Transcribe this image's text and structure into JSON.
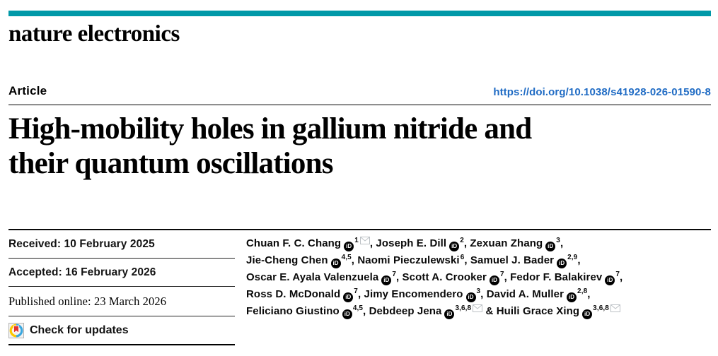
{
  "masthead": {
    "journal": "nature electronics",
    "accent_color": "#0199a8"
  },
  "article_bar": {
    "label": "Article",
    "doi": "https://doi.org/10.1038/s41928-026-01590-8",
    "doi_color": "#1f6bc4"
  },
  "title": {
    "full": "High-mobility holes in gallium nitride and their quantum oscillations",
    "lines": [
      "High-mobility holes in gallium nitride and",
      "their quantum oscillations"
    ]
  },
  "dates": {
    "received": "Received: 10 February 2025",
    "accepted": "Accepted: 16 February 2026",
    "published": "Published online: 23 March 2026"
  },
  "check_for_updates": {
    "label": "Check for updates",
    "icon": "crossmark-icon"
  },
  "icons": {
    "orcid": "orcid-icon",
    "email": "email-icon"
  },
  "authors": {
    "orcid_glyph": "iD",
    "lines": [
      [
        {
          "name": "Chuan F. C. Chang",
          "orcid": true,
          "sup": "1",
          "mail": true,
          "after": ", "
        },
        {
          "name": "Joseph E. Dill",
          "orcid": true,
          "sup": "2",
          "mail": false,
          "after": ", "
        },
        {
          "name": "Zexuan Zhang",
          "orcid": true,
          "sup": "3",
          "mail": false,
          "after": ","
        }
      ],
      [
        {
          "name": "Jie-Cheng Chen",
          "orcid": true,
          "sup": "4,5",
          "mail": false,
          "after": ", "
        },
        {
          "name": "Naomi Pieczulewski",
          "orcid": false,
          "sup": "6",
          "mail": false,
          "after": ", "
        },
        {
          "name": "Samuel J. Bader",
          "orcid": true,
          "sup": "2,9",
          "mail": false,
          "after": ","
        }
      ],
      [
        {
          "name": "Oscar E. Ayala Valenzuela",
          "orcid": true,
          "sup": "7",
          "mail": false,
          "after": ", "
        },
        {
          "name": "Scott A. Crooker",
          "orcid": true,
          "sup": "7",
          "mail": false,
          "after": ", "
        },
        {
          "name": "Fedor F. Balakirev",
          "orcid": true,
          "sup": "7",
          "mail": false,
          "after": ","
        }
      ],
      [
        {
          "name": "Ross D. McDonald",
          "orcid": true,
          "sup": "7",
          "mail": false,
          "after": ", "
        },
        {
          "name": "Jimy Encomendero",
          "orcid": true,
          "sup": "3",
          "mail": false,
          "after": ", "
        },
        {
          "name": "David A. Muller",
          "orcid": true,
          "sup": "2,8",
          "mail": false,
          "after": ","
        }
      ],
      [
        {
          "name": "Feliciano Giustino",
          "orcid": true,
          "sup": "4,5",
          "mail": false,
          "after": ", "
        },
        {
          "name": "Debdeep Jena",
          "orcid": true,
          "sup": "3,6,8",
          "mail": true,
          "after": " & "
        },
        {
          "name": "Huili Grace Xing",
          "orcid": true,
          "sup": "3,6,8",
          "mail": true,
          "after": ""
        }
      ]
    ]
  }
}
